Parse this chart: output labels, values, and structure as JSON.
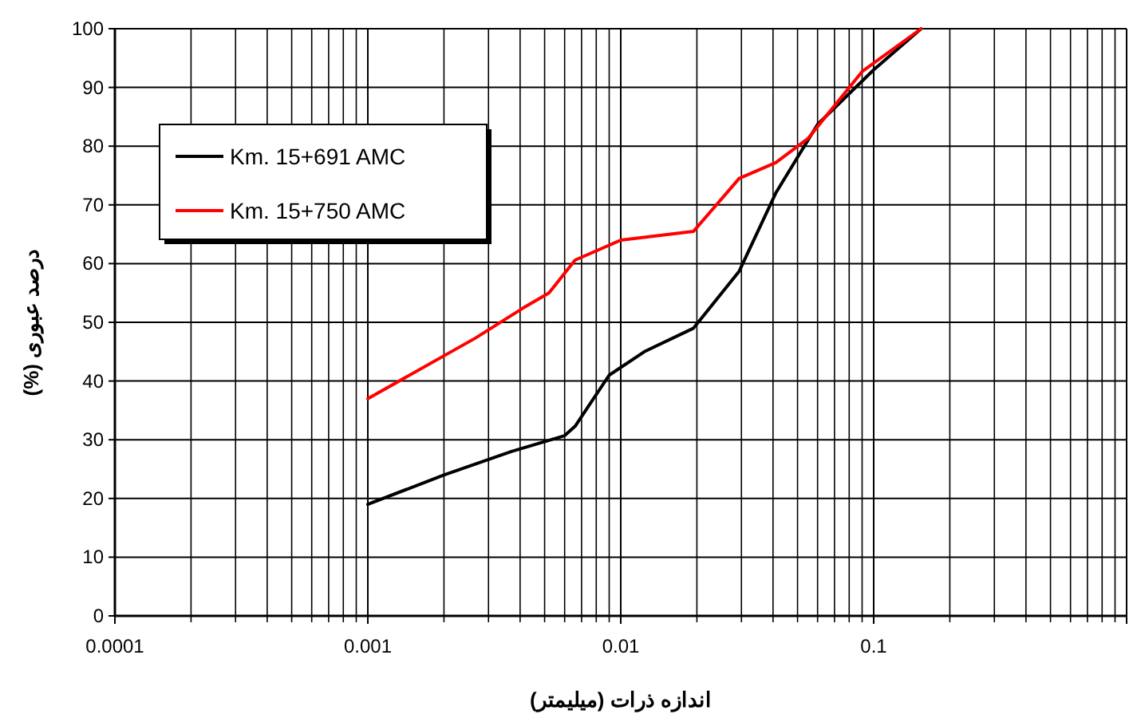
{
  "chart_data": {
    "type": "line",
    "xlabel": "اندازه ذرات (میلیمتر)",
    "ylabel": "درصد عبوری (%)",
    "log": "x",
    "xlim": [
      0.0001,
      1
    ],
    "xticks": [
      0.0001,
      0.001,
      0.01,
      0.1,
      {
        "value": 1,
        "label": null
      }
    ],
    "ylim": [
      0,
      100
    ],
    "yticks": [
      0,
      10,
      20,
      30,
      40,
      50,
      60,
      70,
      80,
      90,
      100
    ],
    "grid": true,
    "legend": "top left",
    "marker": "none",
    "line_style": "solid",
    "series": [
      {
        "name": "Km. 15+691 AMC",
        "color": "#000000",
        "x": [
          0.001,
          0.002,
          0.0037,
          0.006,
          0.0066,
          0.009,
          0.0124,
          0.0194,
          0.0294,
          0.041,
          0.06,
          0.1,
          0.154
        ],
        "values": [
          19,
          24,
          28,
          30.7,
          32.3,
          41,
          45,
          49,
          58.7,
          72,
          83.7,
          93,
          100
        ]
      },
      {
        "name": "Km. 15+750 AMC",
        "color": "#ff0000",
        "x": [
          0.001,
          0.00266,
          0.0041,
          0.0052,
          0.0066,
          0.01,
          0.0194,
          0.0294,
          0.041,
          0.055,
          0.09,
          0.154
        ],
        "values": [
          37,
          47.3,
          52.4,
          55,
          60.6,
          64,
          65.5,
          74.5,
          77.2,
          81.3,
          92.7,
          100
        ]
      }
    ]
  }
}
